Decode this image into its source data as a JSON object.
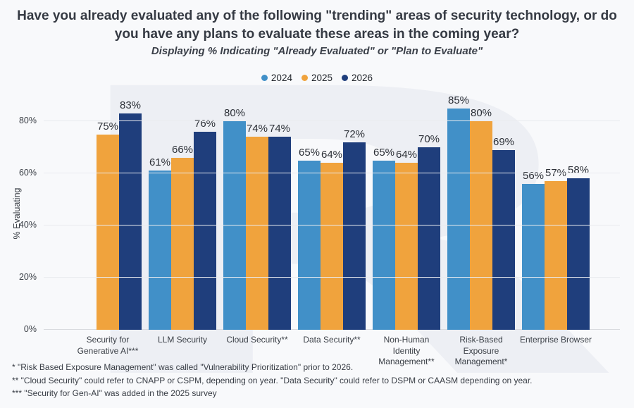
{
  "header": {
    "title": "Have you already evaluated any of the following \"trending\" areas of security technology, or do you have any plans to evaluate these areas in the coming year?",
    "subtitle": "Displaying % Indicating \"Already Evaluated\" or \"Plan to Evaluate\""
  },
  "chart_data": {
    "type": "bar",
    "categories": [
      "Security for Generative AI***",
      "LLM Security",
      "Cloud Security**",
      "Data Security**",
      "Non-Human Identity Management**",
      "Risk-Based Exposure Management*",
      "Enterprise Browser"
    ],
    "series": [
      {
        "name": "2024",
        "color": "#4190c8",
        "values": [
          null,
          61,
          80,
          65,
          65,
          85,
          56
        ]
      },
      {
        "name": "2025",
        "color": "#f0a33d",
        "values": [
          75,
          66,
          74,
          64,
          64,
          80,
          57
        ]
      },
      {
        "name": "2026",
        "color": "#1f3e7c",
        "values": [
          83,
          76,
          74,
          72,
          70,
          69,
          58
        ]
      }
    ],
    "ylabel": "% Evaluating",
    "xlabel": "",
    "ylim": [
      0,
      89
    ],
    "yticks": [
      0,
      20,
      40,
      60,
      80
    ],
    "ytick_suffix": "%",
    "value_suffix": "%",
    "grid": true,
    "legend_position": "top"
  },
  "footnotes": [
    "* \"Risk Based Exposure Management\" was called \"Vulnerability Prioritization\" prior to 2026.",
    "** \"Cloud Security\" could refer to CNAPP or CSPM, depending on year. \"Data Security\" could refer to DSPM or CAASM depending on year.",
    "*** \"Security for Gen-AI\" was added in the 2025 survey"
  ],
  "watermark_glyph": "R"
}
